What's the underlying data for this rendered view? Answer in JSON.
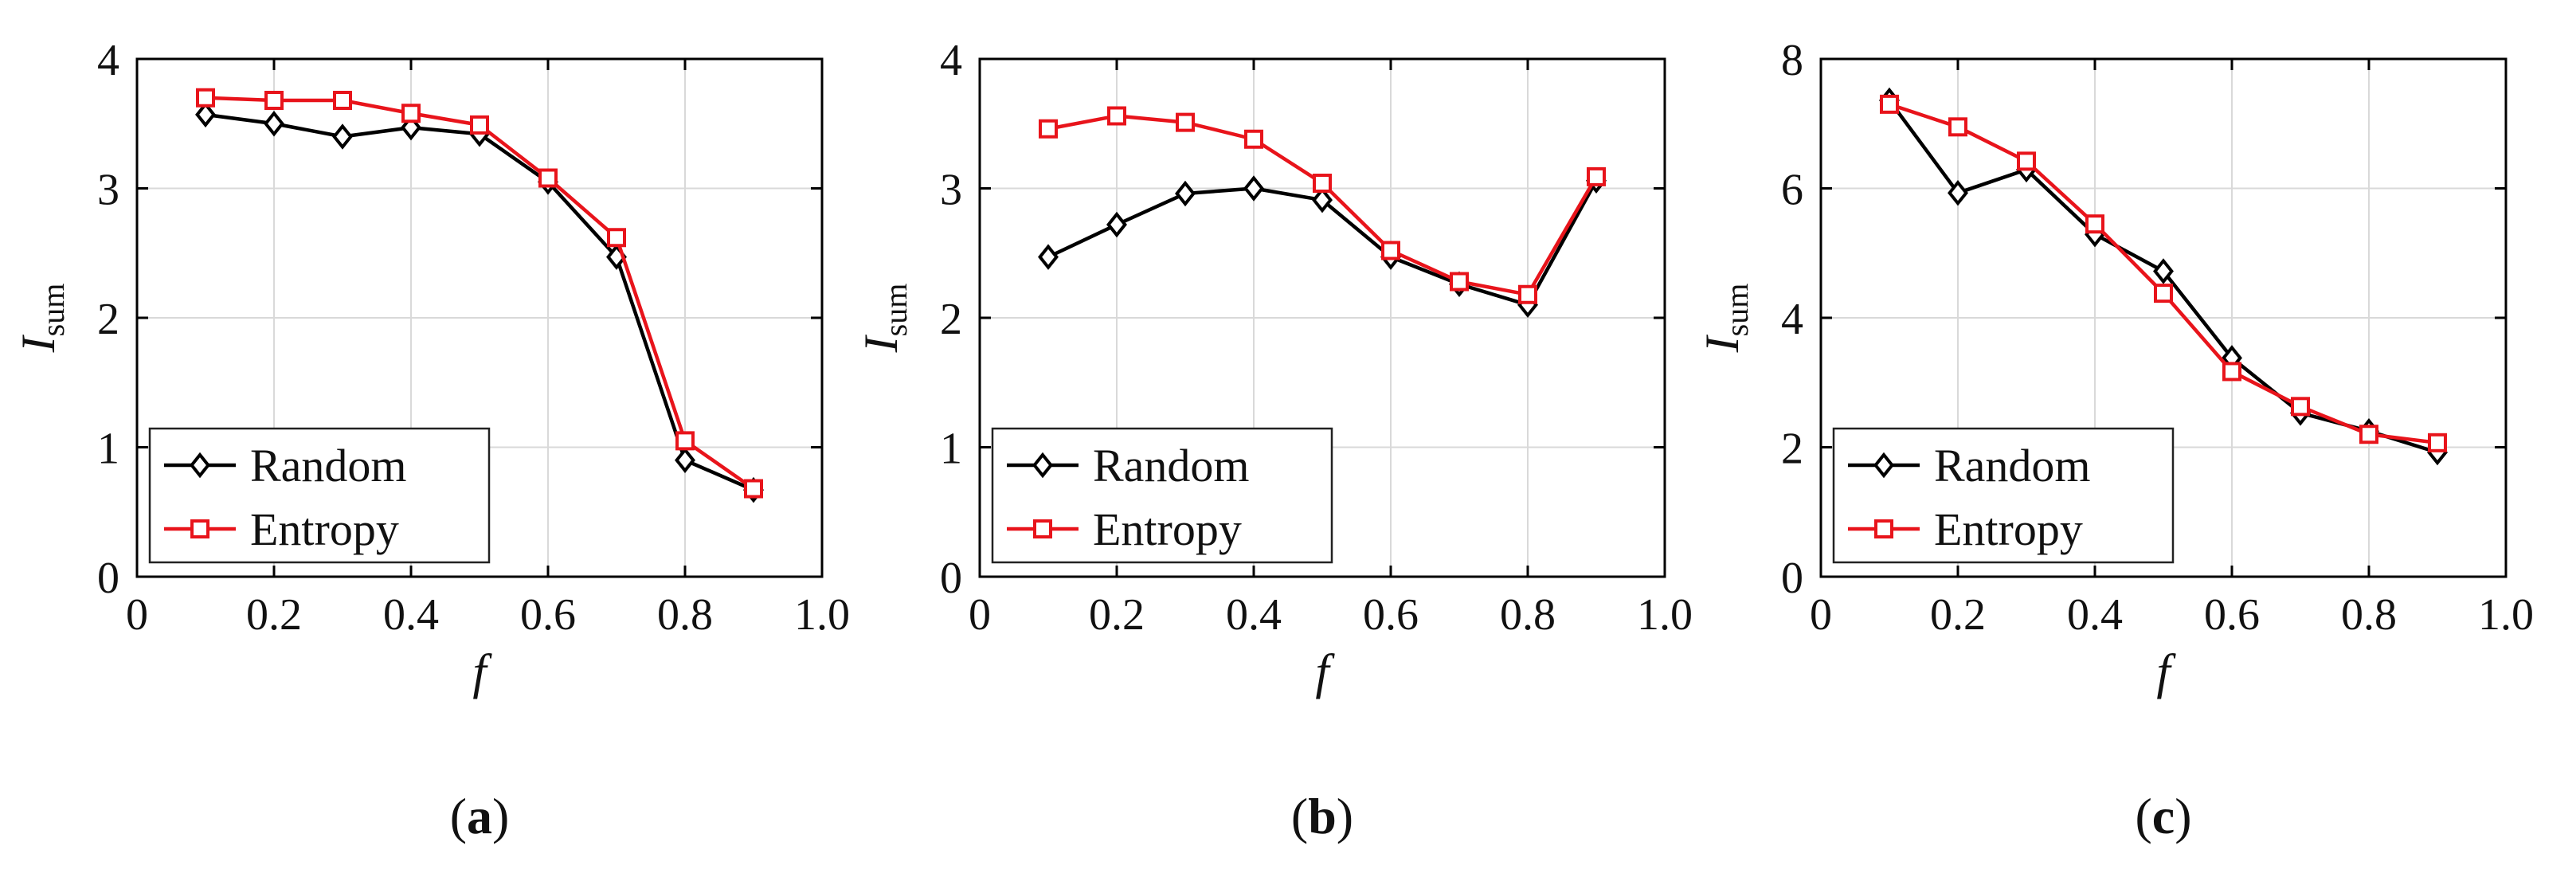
{
  "chart_data": [
    {
      "type": "line",
      "panel_label": "a",
      "xlabel": "f",
      "ylabel": {
        "main": "I",
        "subscript": "sum"
      },
      "xlim": [
        0,
        1.0
      ],
      "ylim": [
        0,
        4
      ],
      "xticks": [
        "0",
        "0.2",
        "0.4",
        "0.6",
        "0.8",
        "1.0"
      ],
      "yticks": [
        "0",
        "1",
        "2",
        "3",
        "4"
      ],
      "grid": true,
      "legend_position": "bottom-left",
      "x": [
        0.1,
        0.2,
        0.3,
        0.4,
        0.5,
        0.6,
        0.7,
        0.8,
        0.9
      ],
      "series": [
        {
          "name": "Random",
          "marker": "diamond",
          "color": "#000000",
          "values": [
            3.57,
            3.5,
            3.4,
            3.47,
            3.42,
            3.05,
            2.47,
            0.9,
            0.67
          ]
        },
        {
          "name": "Entropy",
          "marker": "square",
          "color": "#e8141b",
          "values": [
            3.7,
            3.68,
            3.68,
            3.58,
            3.49,
            3.08,
            2.62,
            1.05,
            0.68
          ]
        }
      ]
    },
    {
      "type": "line",
      "panel_label": "b",
      "xlabel": "f",
      "ylabel": {
        "main": "I",
        "subscript": "sum"
      },
      "xlim": [
        0,
        1.0
      ],
      "ylim": [
        0,
        4
      ],
      "xticks": [
        "0",
        "0.2",
        "0.4",
        "0.6",
        "0.8",
        "1.0"
      ],
      "yticks": [
        "0",
        "1",
        "2",
        "3",
        "4"
      ],
      "grid": true,
      "legend_position": "bottom-left",
      "x": [
        0.1,
        0.2,
        0.3,
        0.4,
        0.5,
        0.6,
        0.7,
        0.8,
        0.9
      ],
      "series": [
        {
          "name": "Random",
          "marker": "diamond",
          "color": "#000000",
          "values": [
            2.47,
            2.72,
            2.96,
            3.0,
            2.91,
            2.47,
            2.26,
            2.1,
            3.06
          ]
        },
        {
          "name": "Entropy",
          "marker": "square",
          "color": "#e8141b",
          "values": [
            3.46,
            3.56,
            3.51,
            3.38,
            3.04,
            2.52,
            2.28,
            2.18,
            3.09
          ]
        }
      ]
    },
    {
      "type": "line",
      "panel_label": "c",
      "xlabel": "f",
      "ylabel": {
        "main": "I",
        "subscript": "sum"
      },
      "xlim": [
        0,
        1.0
      ],
      "ylim": [
        0,
        8
      ],
      "xticks": [
        "0",
        "0.2",
        "0.4",
        "0.6",
        "0.8",
        "1.0"
      ],
      "yticks": [
        "0",
        "2",
        "4",
        "6",
        "8"
      ],
      "grid": true,
      "legend_position": "bottom-left",
      "x": [
        0.1,
        0.2,
        0.3,
        0.4,
        0.5,
        0.6,
        0.7,
        0.8,
        0.9
      ],
      "series": [
        {
          "name": "Random",
          "marker": "diamond",
          "color": "#000000",
          "values": [
            7.36,
            5.93,
            6.29,
            5.29,
            4.72,
            3.38,
            2.53,
            2.25,
            1.92
          ]
        },
        {
          "name": "Entropy",
          "marker": "square",
          "color": "#e8141b",
          "values": [
            7.3,
            6.95,
            6.42,
            5.45,
            4.38,
            3.17,
            2.63,
            2.2,
            2.07
          ]
        }
      ]
    }
  ],
  "captions": [
    {
      "open": "(",
      "letter": "a",
      "close": ")"
    },
    {
      "open": "(",
      "letter": "b",
      "close": ")"
    },
    {
      "open": "(",
      "letter": "c",
      "close": ")"
    }
  ]
}
